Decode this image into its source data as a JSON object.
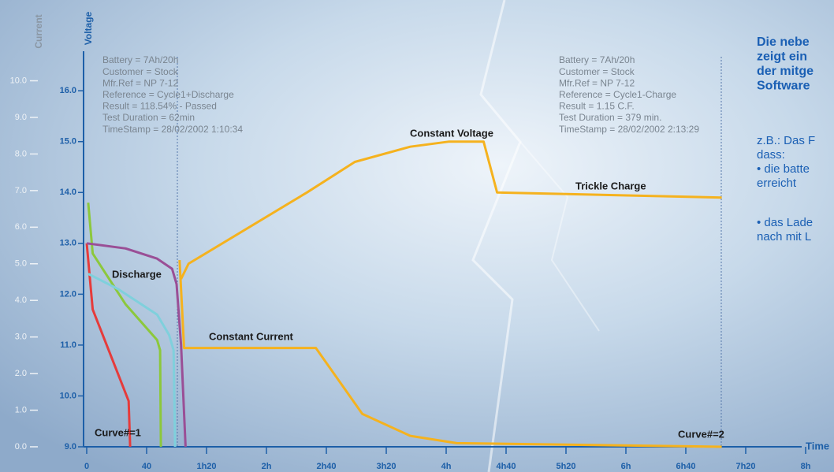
{
  "chart_data": {
    "type": "line",
    "y_title": "Current",
    "y2_title": "Voltage",
    "x_title": "Time",
    "xlim": [
      0,
      480
    ],
    "xticks": [
      0,
      40,
      {
        "value": 80,
        "label": "1h20"
      },
      {
        "value": 120,
        "label": "2h"
      },
      {
        "value": 160,
        "label": "2h40"
      },
      {
        "value": 200,
        "label": "3h20"
      },
      {
        "value": 240,
        "label": "4h"
      },
      {
        "value": 280,
        "label": "4h40"
      },
      {
        "value": 320,
        "label": "5h20"
      },
      {
        "value": 360,
        "label": "6h"
      },
      {
        "value": 400,
        "label": "6h40"
      },
      {
        "value": 440,
        "label": "7h20"
      },
      {
        "value": 480,
        "label": "8h"
      }
    ],
    "ylim": [
      0,
      10.7
    ],
    "yticks": [
      {
        "value": 0,
        "label": "0.0"
      },
      {
        "value": 1,
        "label": "1.0"
      },
      {
        "value": 2,
        "label": "2.0"
      },
      {
        "value": 3,
        "label": "3.0"
      },
      {
        "value": 4,
        "label": "4.0"
      },
      {
        "value": 5,
        "label": "5.0"
      },
      {
        "value": 6,
        "label": "6.0"
      },
      {
        "value": 7,
        "label": "7.0"
      },
      {
        "value": 8,
        "label": "8.0"
      },
      {
        "value": 9,
        "label": "9.0"
      },
      {
        "value": 10,
        "label": "10.0"
      }
    ],
    "y2lim": [
      9,
      16.7
    ],
    "y2ticks": [
      {
        "value": 9,
        "label": "9.0"
      },
      {
        "value": 10,
        "label": "10.0"
      },
      {
        "value": 11,
        "label": "11.0"
      },
      {
        "value": 12,
        "label": "12.0"
      },
      {
        "value": 13,
        "label": "13.0"
      },
      {
        "value": 14,
        "label": "14.0"
      },
      {
        "value": 15,
        "label": "15.0"
      },
      {
        "value": 16,
        "label": "16.0"
      }
    ],
    "series": [
      {
        "color": "#e63b3b",
        "axis": "y2",
        "x": [
          0,
          4,
          28,
          29
        ],
        "values": [
          13.0,
          11.7,
          9.9,
          9.0
        ]
      },
      {
        "color": "#8cc83c",
        "axis": "y2",
        "x": [
          1,
          4,
          26,
          47,
          49,
          49.5
        ],
        "values": [
          13.8,
          12.8,
          11.8,
          11.1,
          10.9,
          9.0
        ]
      },
      {
        "color": "#7fd0dc",
        "axis": "y2",
        "x": [
          1,
          21,
          47,
          55,
          58,
          59
        ],
        "values": [
          12.4,
          12.1,
          11.6,
          11.2,
          10.9,
          9.0
        ]
      },
      {
        "color": "#9a4f96",
        "axis": "y2",
        "x": [
          0,
          26,
          47,
          57,
          60,
          63,
          66
        ],
        "values": [
          13.0,
          12.9,
          12.7,
          12.5,
          12.2,
          11.0,
          9.0
        ]
      },
      {
        "color": "#f5b21e",
        "axis": "y2",
        "x": [
          63,
          68,
          147,
          179,
          216,
          242,
          265,
          274,
          424
        ],
        "values": [
          12.3,
          12.6,
          14.0,
          14.6,
          14.9,
          15.0,
          15.0,
          14.0,
          13.9
        ]
      },
      {
        "color": "#f5b21e",
        "axis": "y",
        "x": [
          62,
          65,
          84,
          153,
          184,
          216,
          247,
          424
        ],
        "values": [
          5.1,
          2.7,
          2.7,
          2.7,
          0.9,
          0.3,
          0.1,
          0.0
        ]
      }
    ],
    "annotations": [
      "Discharge",
      "Constant Current",
      "Constant Voltage",
      "Trickle Charge",
      "Curve#=1",
      "Curve#=2"
    ],
    "info_left": [
      "Battery = 7Ah/20h",
      "Customer = Stock",
      "Mfr.Ref = NP 7-12",
      "Reference = Cycle1+Discharge",
      "Result = 118.54% - Passed",
      "Test Duration = 62min",
      "TimeStamp = 28/02/2002 1:10:34"
    ],
    "info_right": [
      "Battery = 7Ah/20h",
      "Customer = Stock",
      "Mfr.Ref = NP 7-12",
      "Reference = Cycle1-Charge",
      "Result = 1.15 C.F.",
      "Test Duration = 379 min.",
      "TimeStamp = 28/02/2002 2:13:29"
    ]
  },
  "side_heading": [
    "Die nebe",
    "zeigt ein",
    "der mitge",
    "Software"
  ],
  "side_body": [
    "z.B.: Das F",
    "dass:",
    "• die batte",
    "erreicht",
    "• das Lade",
    "nach mit L"
  ]
}
